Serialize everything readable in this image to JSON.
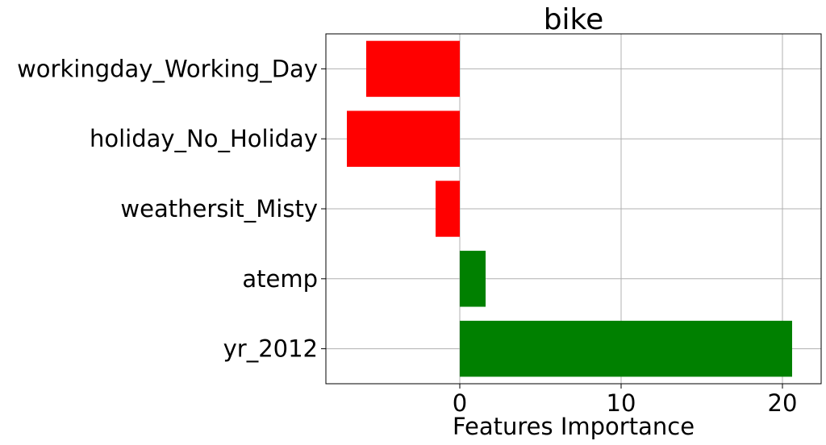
{
  "chart_data": {
    "type": "bar",
    "orientation": "horizontal",
    "title": "bike",
    "xlabel": "Features Importance",
    "ylabel": "",
    "categories": [
      "workingday_Working_Day",
      "holiday_No_Holiday",
      "weathersit_Misty",
      "atemp",
      "yr_2012"
    ],
    "values": [
      -5.8,
      -7.0,
      -1.5,
      1.6,
      20.6
    ],
    "colors": [
      "#ff0000",
      "#ff0000",
      "#ff0000",
      "#008000",
      "#008000"
    ],
    "xlim": [
      -8.3,
      22.4
    ],
    "xticks": [
      0,
      10,
      20
    ],
    "xtick_labels": [
      "0",
      "10",
      "20"
    ],
    "grid": true
  }
}
